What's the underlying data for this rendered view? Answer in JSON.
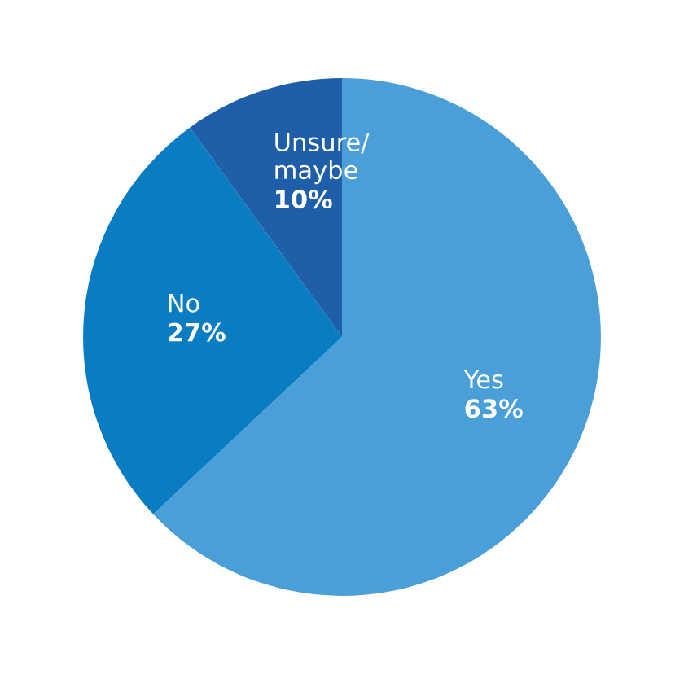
{
  "chart_data": {
    "type": "pie",
    "categories": [
      "Yes",
      "No",
      "Unsure/\nmaybe"
    ],
    "values": [
      63,
      27,
      10
    ],
    "value_labels": [
      "63%",
      "27%",
      "10%"
    ],
    "colors": [
      "#4a9fd8",
      "#0a7cc2",
      "#1f5ea8"
    ]
  }
}
